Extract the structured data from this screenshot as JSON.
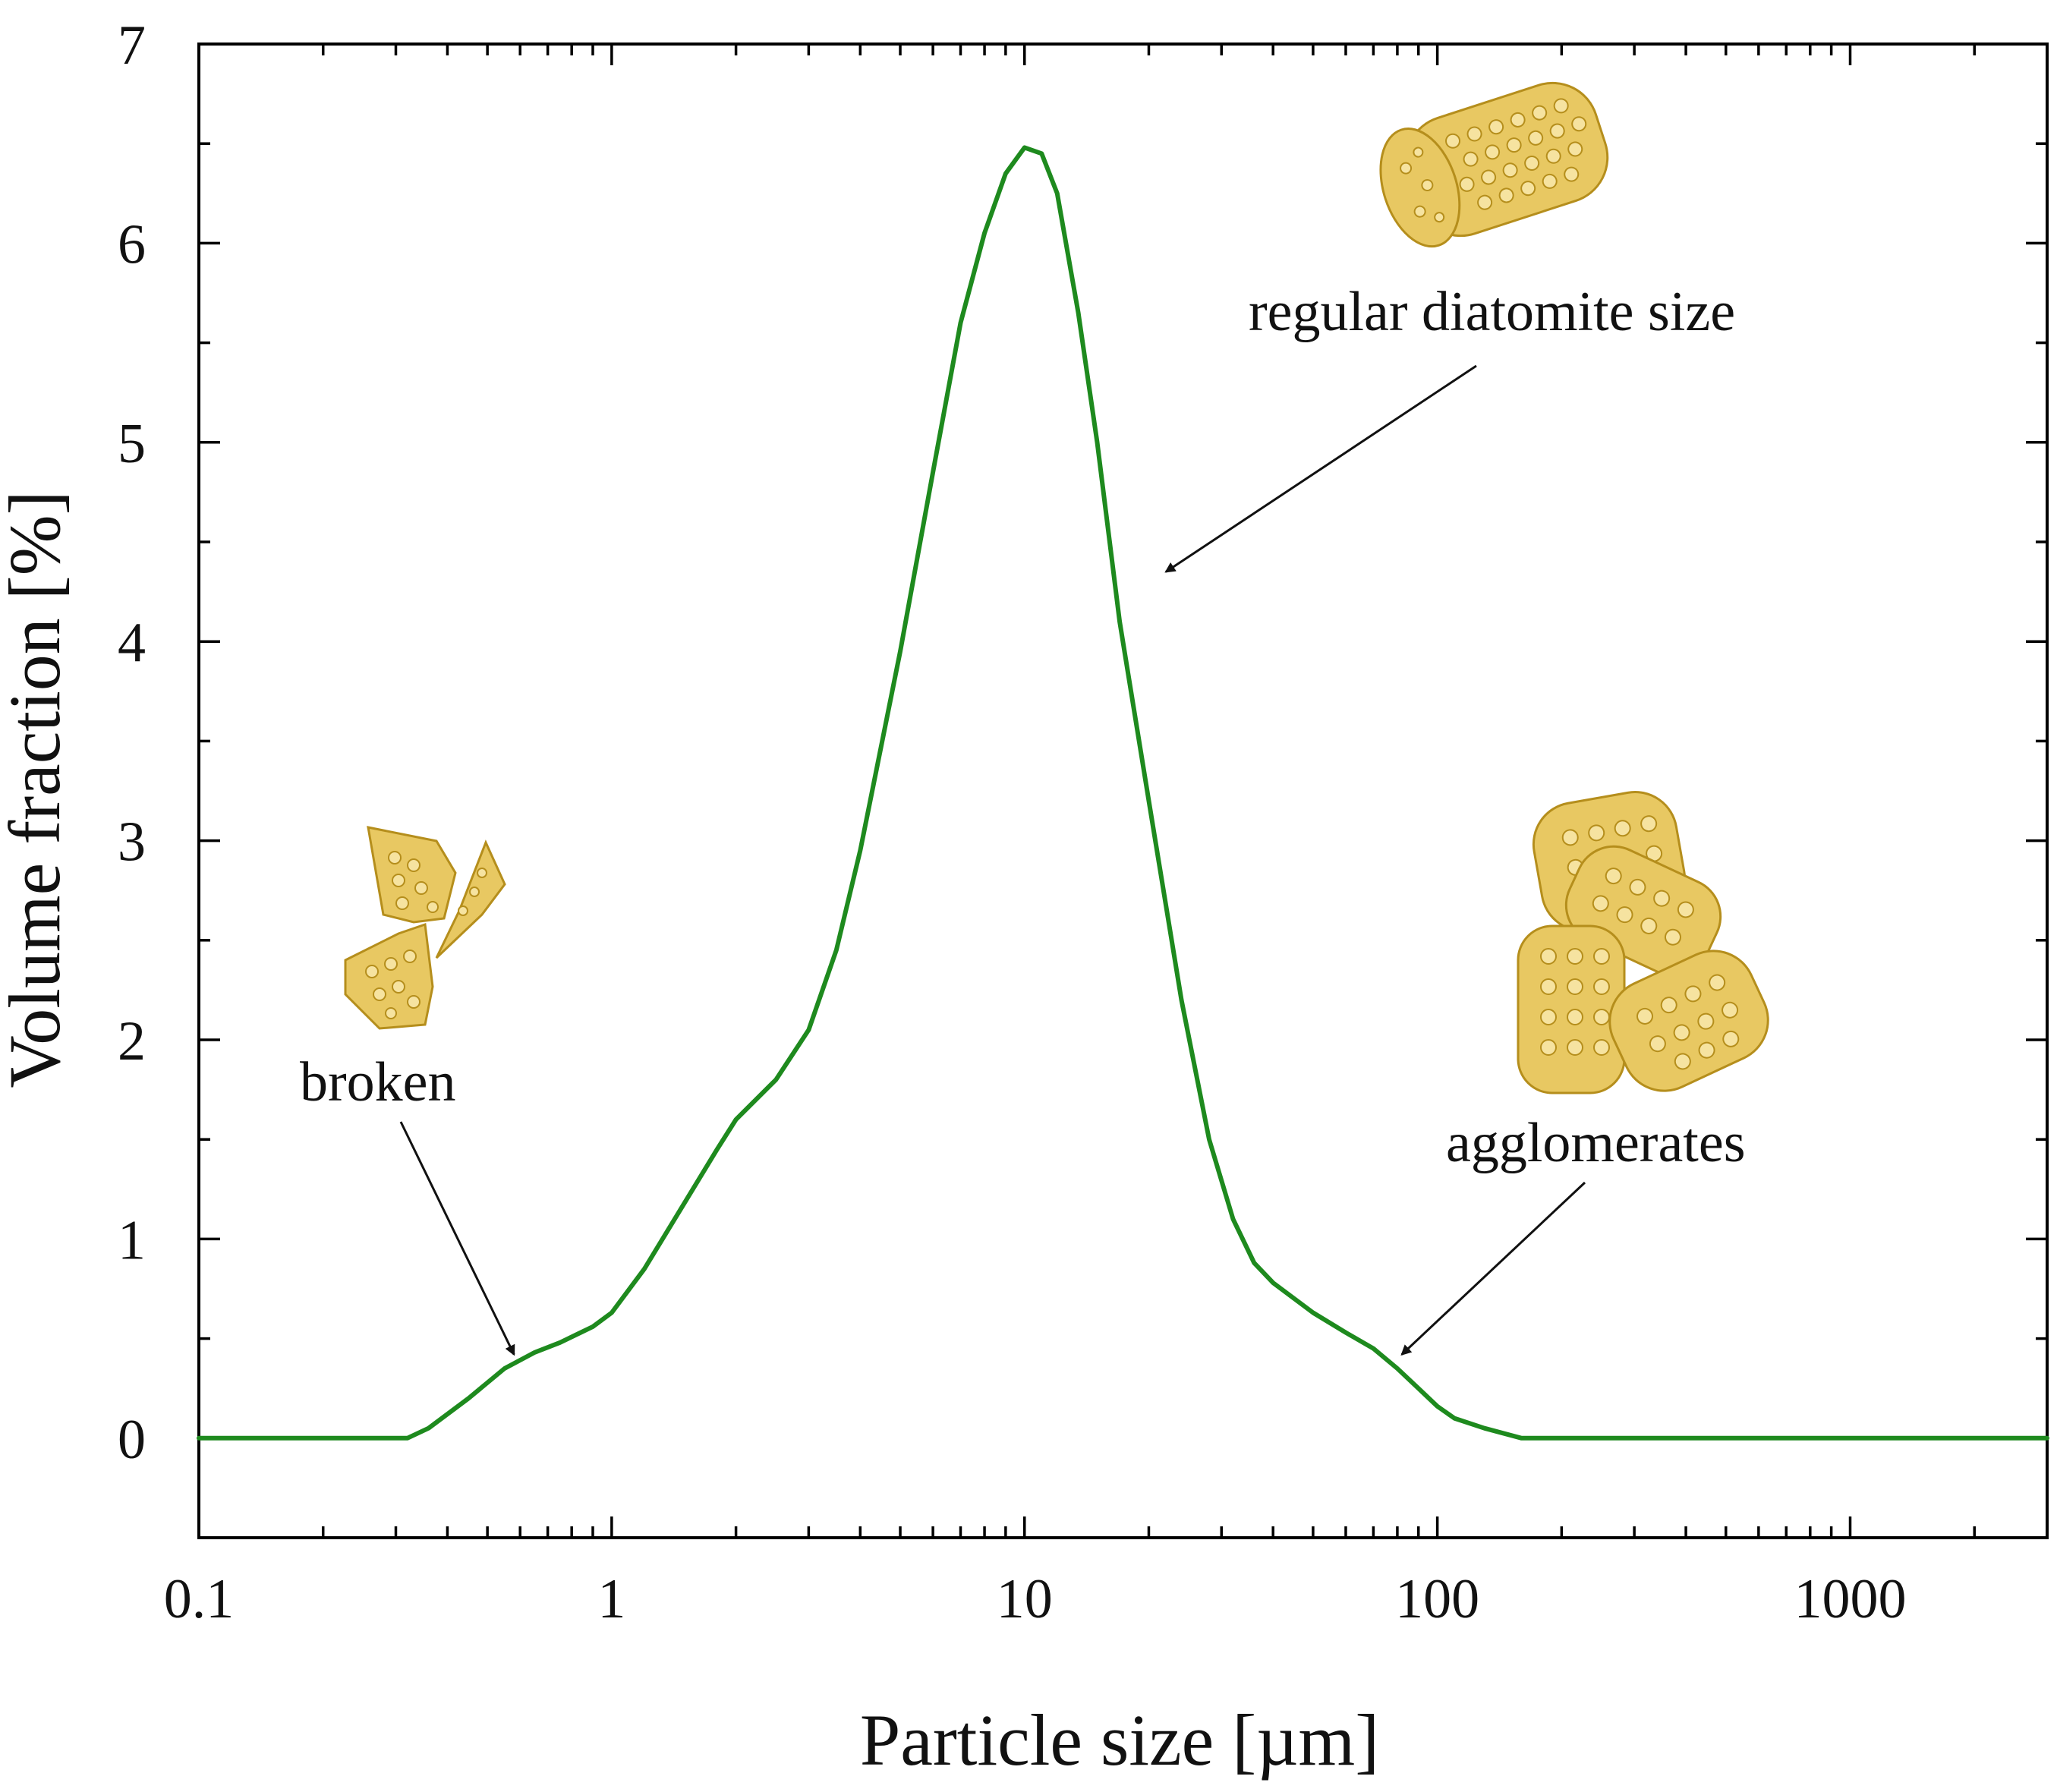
{
  "chart_data": {
    "type": "line",
    "xscale": "log",
    "xlim": [
      0.1,
      3000
    ],
    "ylim": [
      -0.5,
      7
    ],
    "xlabel": "Particle size [µm]",
    "ylabel": "Volume fraction [%]",
    "xticks": [
      {
        "value": 0.1,
        "label": "0.1"
      },
      {
        "value": 1,
        "label": "1"
      },
      {
        "value": 10,
        "label": "10"
      },
      {
        "value": 100,
        "label": "100"
      },
      {
        "value": 1000,
        "label": "1000"
      }
    ],
    "yticks": [
      {
        "value": 0,
        "label": "0"
      },
      {
        "value": 1,
        "label": "1"
      },
      {
        "value": 2,
        "label": "2"
      },
      {
        "value": 3,
        "label": "3"
      },
      {
        "value": 4,
        "label": "4"
      },
      {
        "value": 5,
        "label": "5"
      },
      {
        "value": 6,
        "label": "6"
      },
      {
        "value": 7,
        "label": "7"
      }
    ],
    "series": [
      {
        "name": "Volume fraction",
        "color": "#1e8a1e",
        "x": [
          0.1,
          0.2,
          0.32,
          0.36,
          0.45,
          0.55,
          0.65,
          0.75,
          0.9,
          1.0,
          1.2,
          1.5,
          1.8,
          2.0,
          2.5,
          3.0,
          3.5,
          4.0,
          5.0,
          6.0,
          7.0,
          8.0,
          9.0,
          10.0,
          11.0,
          12.0,
          13.5,
          15.0,
          17.0,
          20.0,
          24.0,
          28.0,
          32.0,
          36.0,
          40.0,
          50.0,
          60.0,
          70.0,
          80.0,
          90.0,
          100.0,
          110.0,
          130.0,
          160.0,
          200.0,
          500.0,
          1000.0,
          3000.0
        ],
        "y": [
          0,
          0,
          0,
          0.05,
          0.2,
          0.35,
          0.43,
          0.48,
          0.56,
          0.63,
          0.85,
          1.18,
          1.45,
          1.6,
          1.8,
          2.05,
          2.45,
          2.95,
          3.95,
          4.85,
          5.6,
          6.05,
          6.35,
          6.48,
          6.45,
          6.25,
          5.65,
          5.0,
          4.1,
          3.2,
          2.2,
          1.5,
          1.1,
          0.88,
          0.78,
          0.63,
          0.53,
          0.45,
          0.35,
          0.25,
          0.16,
          0.1,
          0.05,
          0,
          0,
          0,
          0,
          0
        ]
      }
    ],
    "annotations": [
      {
        "text": "regular diatomite size",
        "target_x": 22,
        "target_y": 4.35
      },
      {
        "text": "broken",
        "target_x": 0.58,
        "target_y": 0.42
      },
      {
        "text": "agglomerates",
        "target_x": 82,
        "target_y": 0.42
      }
    ],
    "grid": false
  }
}
